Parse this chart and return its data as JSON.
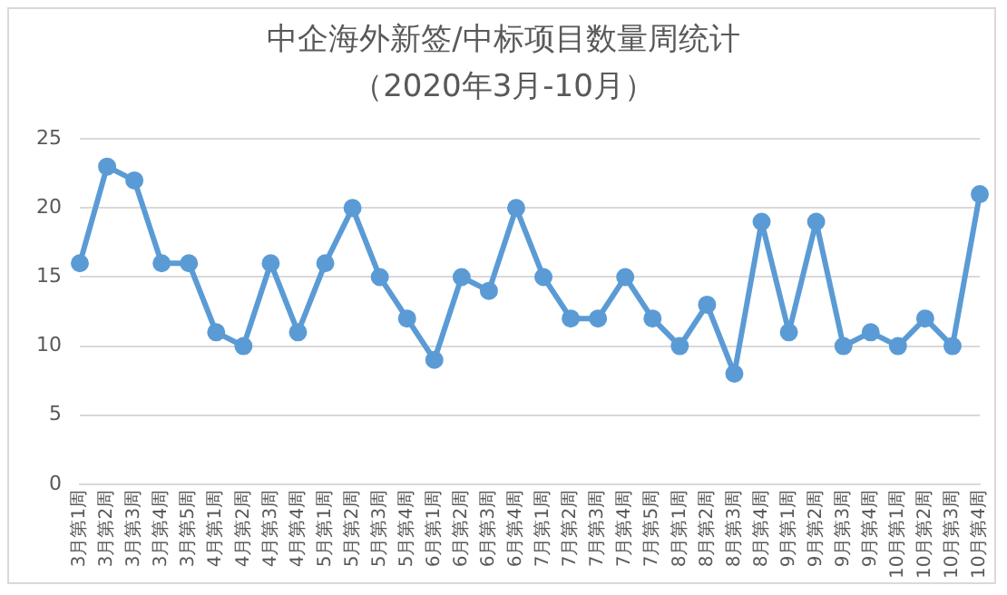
{
  "chart_data": {
    "type": "line",
    "title": "中企海外新签/中标项目数量周统计",
    "subtitle": "（2020年3月-10月）",
    "categories": [
      "3月第1周",
      "3月第2周",
      "3月第3周",
      "3月第4周",
      "3月第5周",
      "4月第1周",
      "4月第2周",
      "4月第3周",
      "4月第4周",
      "5月第1周",
      "5月第2周",
      "5月第3周",
      "5月第4周",
      "6月第1周",
      "6月第2周",
      "6月第3周",
      "6月第4周",
      "7月第1周",
      "7月第2周",
      "7月第3周",
      "7月第4周",
      "7月第5周",
      "8月第1周",
      "8月第2周",
      "8月第3周",
      "8月第4周",
      "9月第1周",
      "9月第2周",
      "9月第3周",
      "9月第4周",
      "10月第1周",
      "10月第2周",
      "10月第3周",
      "10月第4周"
    ],
    "series": [
      {
        "color": "#5b9bd5",
        "values": [
          16,
          23,
          22,
          16,
          16,
          11,
          10,
          16,
          11,
          16,
          20,
          15,
          12,
          9,
          15,
          14,
          20,
          15,
          12,
          12,
          15,
          12,
          10,
          13,
          8,
          19,
          11,
          19,
          10,
          11,
          10,
          12,
          10,
          21
        ]
      }
    ],
    "ylim": [
      0,
      25
    ],
    "yticks": [
      0,
      5,
      10,
      15,
      20,
      25
    ],
    "grid": "y",
    "legend": false,
    "marker": "circle",
    "line_style": "solid"
  }
}
